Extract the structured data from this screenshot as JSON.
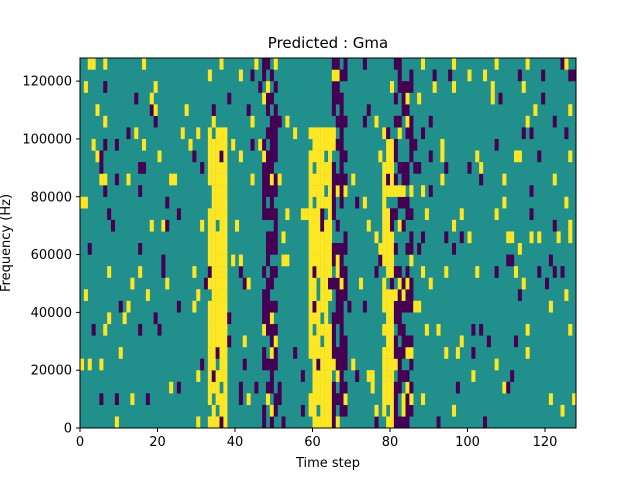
{
  "chart_data": {
    "type": "heatmap",
    "title": "Predicted : Gma",
    "xlabel": "Time step",
    "ylabel": "Frequency (Hz)",
    "xlim": [
      0,
      128
    ],
    "ylim": [
      0,
      128000
    ],
    "x_ticks": [
      0,
      20,
      40,
      60,
      80,
      100,
      120
    ],
    "y_ticks": [
      0,
      20000,
      40000,
      60000,
      80000,
      100000,
      120000
    ],
    "x_tick_labels": [
      "0",
      "20",
      "40",
      "60",
      "80",
      "100",
      "120"
    ],
    "y_tick_labels": [
      "0",
      "20000",
      "40000",
      "60000",
      "80000",
      "100000",
      "120000"
    ],
    "n_time_steps": 128,
    "n_freq_bins": 32,
    "bin_hz": 4000,
    "colormap": "viridis",
    "colors": {
      "-1": "#440154",
      "0": "#21908c",
      "1": "#fde725"
    },
    "value_levels": [
      -1,
      0,
      1
    ],
    "background_value": 0,
    "dense_bands": [
      {
        "x_range": [
          33,
          37
        ],
        "value": 1,
        "description": "strong yellow band"
      },
      {
        "x_range": [
          59,
          64
        ],
        "value": 1,
        "description": "strong yellow band"
      },
      {
        "x_range": [
          65,
          68
        ],
        "value": -1,
        "description": "purple band"
      },
      {
        "x_range": [
          47,
          50
        ],
        "value": -1,
        "description": "mixed purple band"
      },
      {
        "x_range": [
          78,
          80
        ],
        "value": 1,
        "description": "yellow lower band"
      },
      {
        "x_range": [
          81,
          85
        ],
        "value": -1,
        "description": "purple band"
      }
    ],
    "approx_cells": [
      {
        "x": 2,
        "y": 124000,
        "v": 1
      },
      {
        "x": 1,
        "y": 44000,
        "v": 1
      },
      {
        "x": 5,
        "y": 8000,
        "v": -1
      },
      {
        "x": 6,
        "y": 32000,
        "v": 1
      },
      {
        "x": 16,
        "y": 96000,
        "v": 1
      },
      {
        "x": 21,
        "y": 52000,
        "v": -1
      },
      {
        "x": 27,
        "y": 108000,
        "v": 1
      },
      {
        "x": 42,
        "y": 48000,
        "v": -1
      },
      {
        "x": 44,
        "y": 84000,
        "v": 1
      },
      {
        "x": 55,
        "y": 24000,
        "v": -1
      },
      {
        "x": 57,
        "y": 72000,
        "v": 1
      },
      {
        "x": 71,
        "y": 16000,
        "v": -1
      },
      {
        "x": 73,
        "y": 104000,
        "v": -1
      },
      {
        "x": 77,
        "y": 60000,
        "v": 1
      },
      {
        "x": 87,
        "y": 40000,
        "v": 1
      },
      {
        "x": 91,
        "y": 120000,
        "v": -1
      },
      {
        "x": 96,
        "y": 68000,
        "v": 1
      },
      {
        "x": 98,
        "y": 28000,
        "v": 1
      },
      {
        "x": 103,
        "y": 32000,
        "v": -1
      },
      {
        "x": 107,
        "y": 96000,
        "v": -1
      },
      {
        "x": 110,
        "y": 12000,
        "v": -1
      },
      {
        "x": 115,
        "y": 124000,
        "v": 1
      },
      {
        "x": 120,
        "y": 48000,
        "v": -1
      },
      {
        "x": 124,
        "y": 4000,
        "v": 1
      },
      {
        "x": 126,
        "y": 64000,
        "v": 1
      }
    ]
  }
}
